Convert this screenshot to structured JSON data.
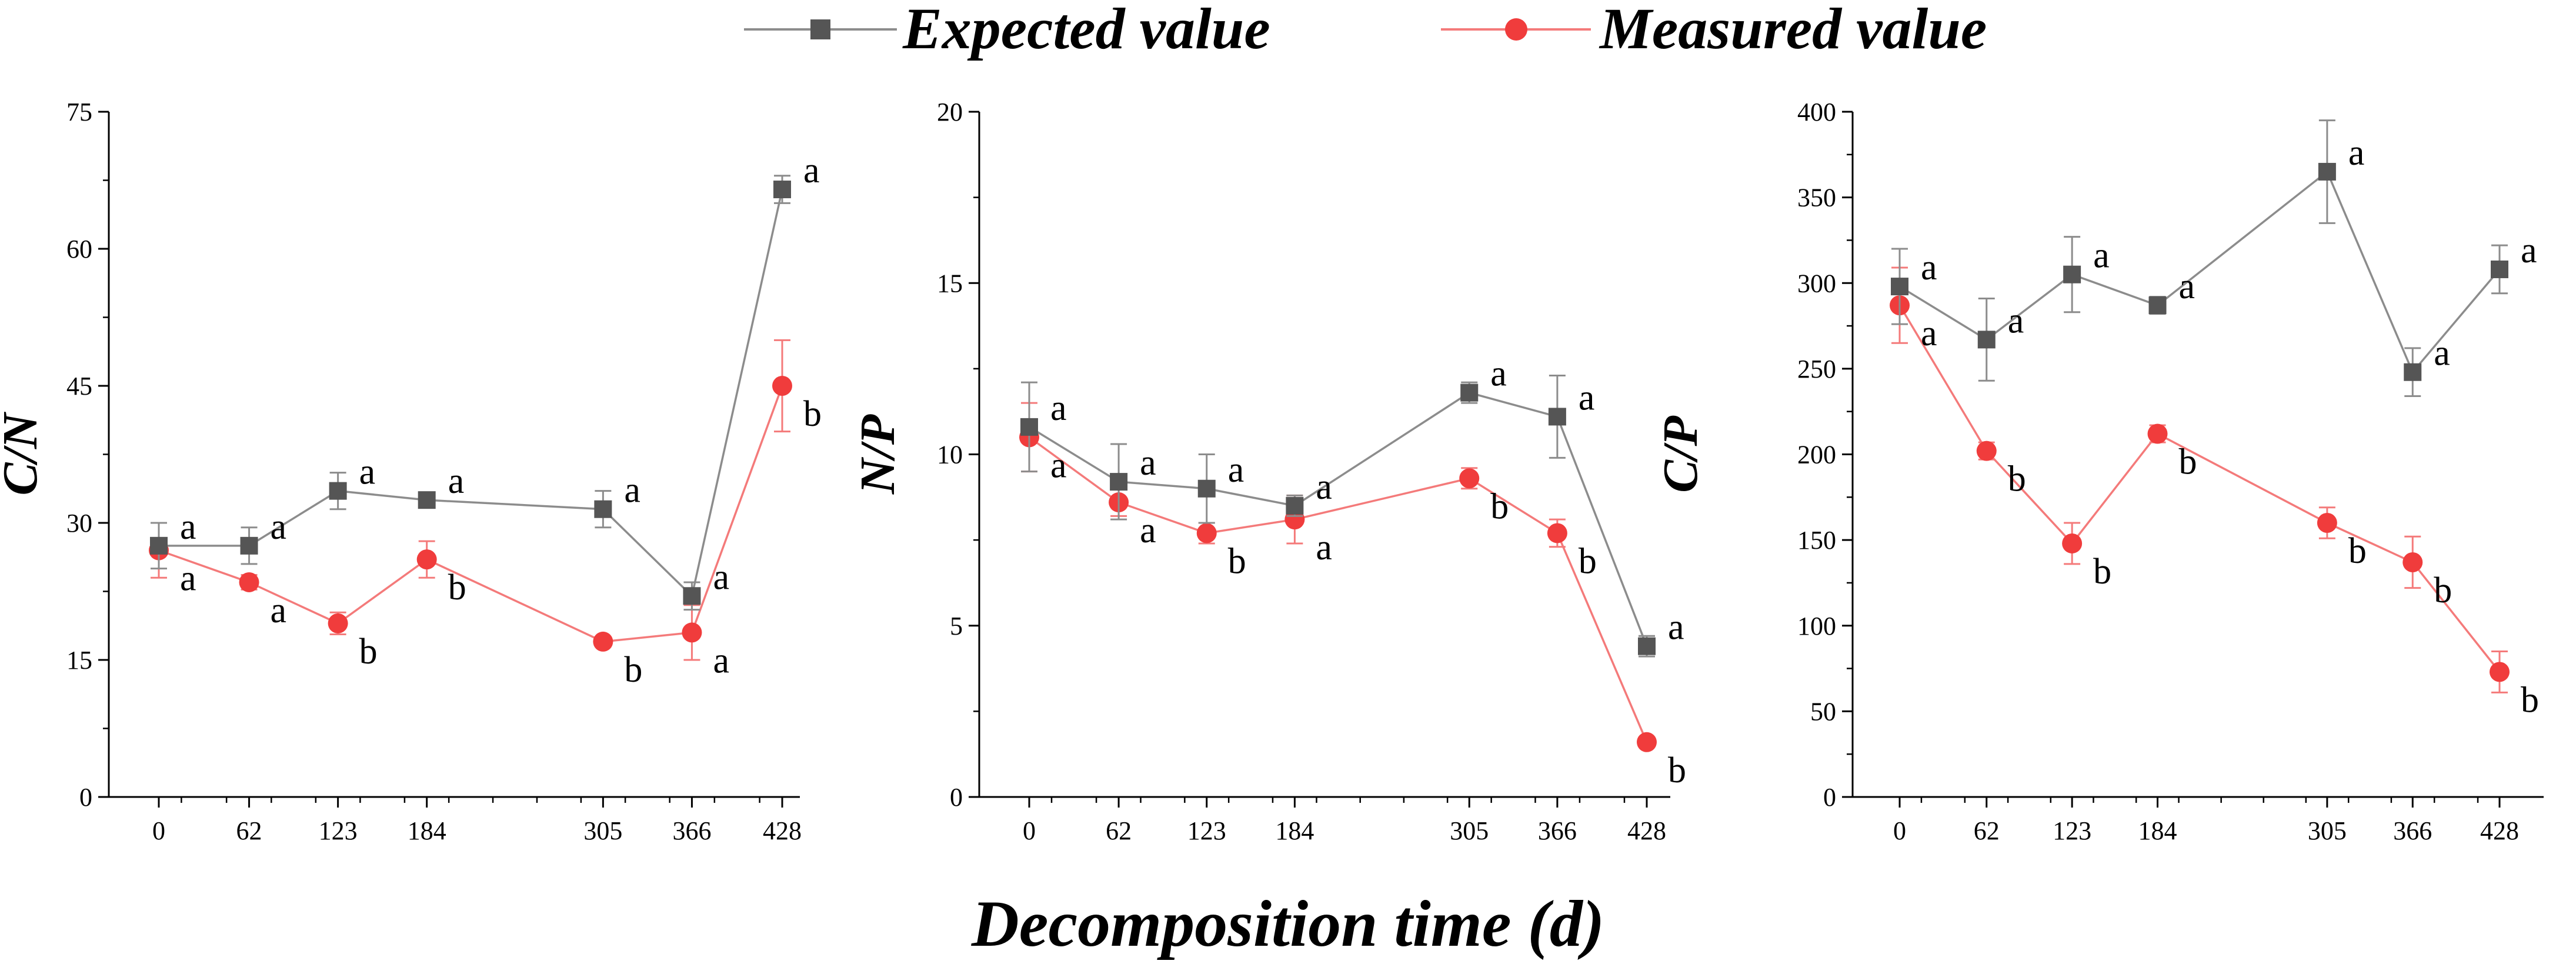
{
  "legend": {
    "expected_label": "Expected value",
    "measured_label": "Measured value"
  },
  "colors": {
    "expected": "#555555",
    "measured": "#f03c3c",
    "expected_line": "#8c8c8c",
    "measured_line": "#f47a7a"
  },
  "x_title": "Decomposition time (d)",
  "chart_data": [
    {
      "type": "line",
      "ylabel": "C/N",
      "categories": [
        0,
        62,
        123,
        184,
        305,
        366,
        428
      ],
      "x_tick_labels": [
        "0",
        "62",
        "123",
        "184",
        "305",
        "366",
        "428"
      ],
      "ylim": [
        0,
        75
      ],
      "y_ticks": [
        0,
        15,
        30,
        45,
        60,
        75
      ],
      "series": [
        {
          "name": "Expected value",
          "values": [
            27.5,
            27.5,
            33.5,
            32.5,
            31.5,
            22,
            66.5
          ],
          "errors": [
            2.5,
            2.0,
            2.0,
            0.5,
            2.0,
            1.5,
            1.5
          ],
          "letters": [
            "a",
            "a",
            "a",
            "a",
            "a",
            "a",
            "a"
          ]
        },
        {
          "name": "Measured value",
          "values": [
            27,
            23.5,
            19,
            26,
            17,
            18,
            45
          ],
          "errors": [
            3.0,
            0.8,
            1.2,
            2.0,
            0.5,
            3.0,
            5.0
          ],
          "letters": [
            "a",
            "a",
            "b",
            "b",
            "b",
            "a",
            "b"
          ]
        }
      ]
    },
    {
      "type": "line",
      "ylabel": "N/P",
      "categories": [
        0,
        62,
        123,
        184,
        305,
        366,
        428
      ],
      "x_tick_labels": [
        "0",
        "62",
        "123",
        "184",
        "305",
        "366",
        "428"
      ],
      "ylim": [
        0,
        20
      ],
      "y_ticks": [
        0,
        5,
        10,
        15,
        20
      ],
      "series": [
        {
          "name": "Expected value",
          "values": [
            10.8,
            9.2,
            9.0,
            8.5,
            11.8,
            11.1,
            4.4
          ],
          "errors": [
            1.3,
            1.1,
            1.0,
            0.3,
            0.3,
            1.2,
            0.3
          ],
          "letters": [
            "a",
            "a",
            "a",
            "a",
            "a",
            "a",
            "a"
          ]
        },
        {
          "name": "Measured value",
          "values": [
            10.5,
            8.6,
            7.7,
            8.1,
            9.3,
            7.7,
            1.6
          ],
          "errors": [
            1.0,
            0.4,
            0.3,
            0.7,
            0.3,
            0.4,
            0.1
          ],
          "letters": [
            "a",
            "a",
            "b",
            "a",
            "b",
            "b",
            "b"
          ]
        }
      ]
    },
    {
      "type": "line",
      "ylabel": "C/P",
      "categories": [
        0,
        62,
        123,
        184,
        305,
        366,
        428
      ],
      "x_tick_labels": [
        "0",
        "62",
        "123",
        "184",
        "305",
        "366",
        "428"
      ],
      "ylim": [
        0,
        400
      ],
      "y_ticks": [
        0,
        50,
        100,
        150,
        200,
        250,
        300,
        350,
        400
      ],
      "series": [
        {
          "name": "Expected value",
          "values": [
            298,
            267,
            305,
            287,
            365,
            248,
            308
          ],
          "errors": [
            22,
            24,
            22,
            5,
            30,
            14,
            14
          ],
          "letters": [
            "a",
            "a",
            "a",
            "a",
            "a",
            "a",
            "a"
          ]
        },
        {
          "name": "Measured value",
          "values": [
            287,
            202,
            148,
            212,
            160,
            137,
            73
          ],
          "errors": [
            22,
            5,
            12,
            5,
            9,
            15,
            12
          ],
          "letters": [
            "a",
            "b",
            "b",
            "b",
            "b",
            "b",
            "b"
          ]
        }
      ]
    }
  ]
}
